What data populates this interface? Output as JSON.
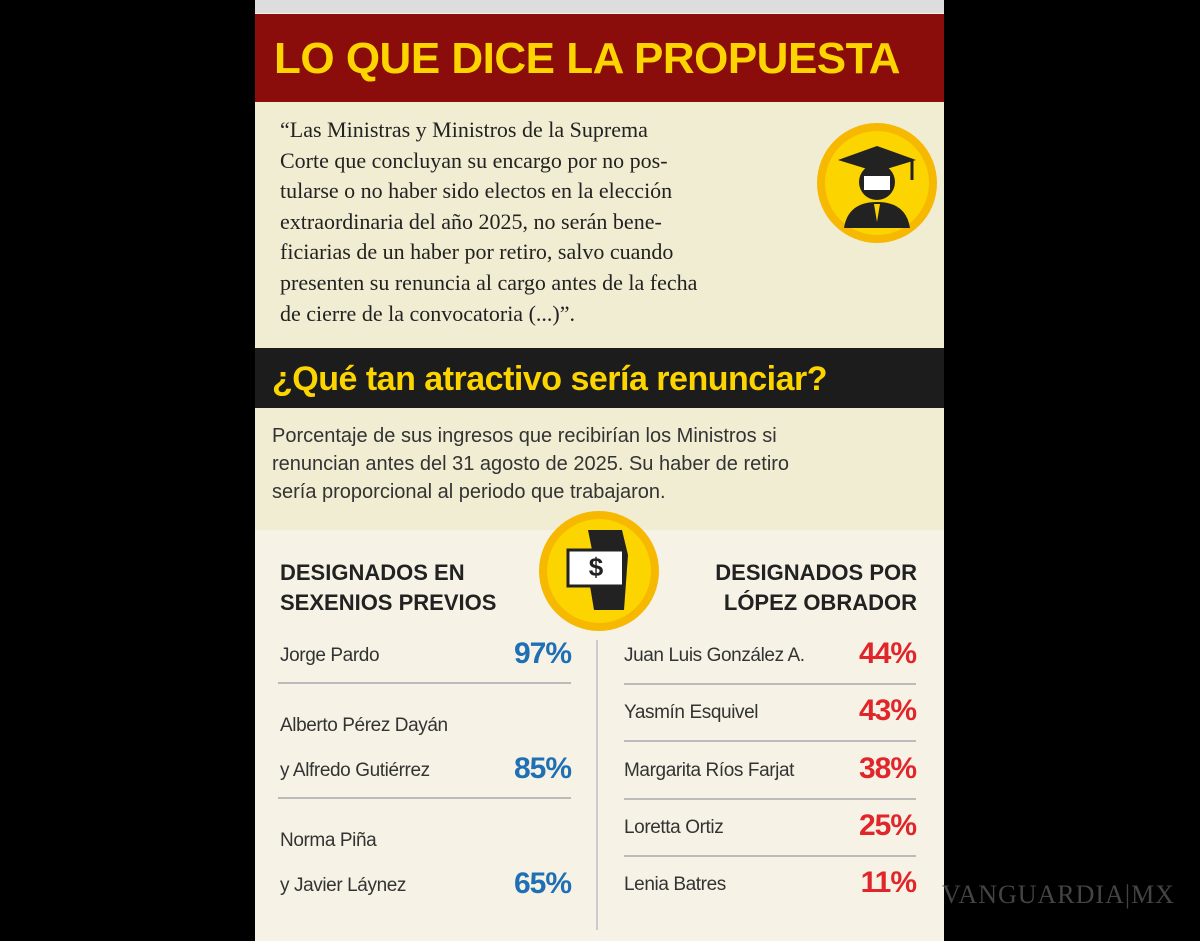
{
  "header": {
    "title": "LO QUE DICE LA PROPUESTA"
  },
  "quote": {
    "lines": [
      "“Las Ministras y Ministros de la Suprema",
      "Corte que concluyan su encargo por no pos-",
      "tularse o no haber sido electos en la elección",
      "extraordinaria del año 2025, no serán bene-",
      "ficiarias de un haber por retiro, salvo cuando",
      "presenten su renuncia al cargo antes de la fecha",
      "de cierre de la convocatoria (...)”."
    ]
  },
  "question": {
    "title": "¿Qué tan atractivo sería renunciar?",
    "lines": [
      "Porcentaje de sus ingresos que recibirían los Ministros si",
      "renuncian antes del 31 agosto de 2025. Su haber de retiro",
      "sería proporcional al periodo que trabajaron."
    ]
  },
  "left": {
    "heading": [
      "DESIGNADOS EN",
      "SEXENIOS PREVIOS"
    ],
    "rows": [
      {
        "name": [
          "Jorge Pardo"
        ],
        "value": "97%"
      },
      {
        "name": [
          "Alberto Pérez Dayán",
          "y Alfredo Gutiérrez"
        ],
        "value": "85%"
      },
      {
        "name": [
          "Norma Piña",
          "y Javier Láynez"
        ],
        "value": "65%"
      }
    ]
  },
  "right": {
    "heading": [
      "DESIGNADOS POR",
      "LÓPEZ OBRADOR"
    ],
    "rows": [
      {
        "name": [
          "Juan Luis González A."
        ],
        "value": "44%"
      },
      {
        "name": [
          "Yasmín Esquivel"
        ],
        "value": "43%"
      },
      {
        "name": [
          "Margarita Ríos Farjat"
        ],
        "value": "38%"
      },
      {
        "name": [
          "Loretta Ortiz"
        ],
        "value": "25%"
      },
      {
        "name": [
          "Lenia Batres"
        ],
        "value": "11%"
      }
    ]
  },
  "watermark": "VANGUARDIA|MX"
}
